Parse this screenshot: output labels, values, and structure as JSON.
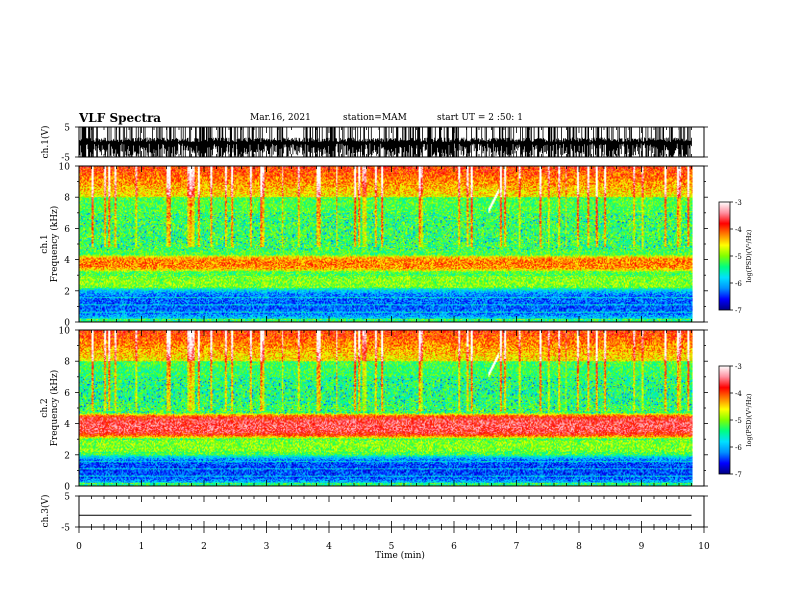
{
  "header": {
    "title": "VLF Spectra",
    "date": "Mar.16, 2021",
    "station": "station=MAM",
    "start": "start UT =  2 :50: 1"
  },
  "colors": {
    "colormap": [
      "#000080",
      "#0000ff",
      "#0090ff",
      "#00e0ff",
      "#00ff80",
      "#80ff00",
      "#ffff00",
      "#ff8000",
      "#ff0000",
      "#ff90a0",
      "#ffffff"
    ],
    "waveform": "#000000"
  },
  "chart_data": [
    {
      "type": "line",
      "name": "ch1-waveform",
      "ylabel": "ch.1(V)",
      "ylim": [
        -5,
        5
      ],
      "yticks": [
        "5",
        "-5"
      ],
      "xlim": [
        0,
        10
      ],
      "description_series": {
        "x": [
          0,
          9.8
        ],
        "y": [
          -5,
          5
        ]
      }
    },
    {
      "type": "heatmap",
      "name": "ch1-spectrogram",
      "ylabel_channel": "ch.1",
      "ylabel": "Frequency  (kHz)",
      "ylim": [
        0,
        10
      ],
      "yticks": [
        "0",
        "2",
        "4",
        "6",
        "8",
        "10"
      ],
      "xlim": [
        0,
        10
      ],
      "data_xmax": 9.8,
      "colorbar": {
        "label": "log(PSD)(V²/Hz)",
        "range": [
          -7,
          -3
        ],
        "ticks": [
          "-3",
          "-4",
          "-5",
          "-6",
          "-7"
        ]
      },
      "bands": [
        {
          "freq_khz": [
            3.2,
            4.3
          ],
          "level": -4.2
        },
        {
          "freq_khz": [
            0,
            2.2
          ],
          "level": -6.3
        },
        {
          "freq_khz": [
            5.0,
            8.0
          ],
          "level": -5.2
        }
      ],
      "feature": {
        "time_min": [
          6.55,
          6.7
        ],
        "freq_khz": [
          7.2,
          8.4
        ],
        "level": -3.0
      }
    },
    {
      "type": "heatmap",
      "name": "ch2-spectrogram",
      "ylabel_channel": "ch.2",
      "ylabel": "Frequency  (kHz)",
      "ylim": [
        0,
        10
      ],
      "yticks": [
        "0",
        "2",
        "4",
        "6",
        "8",
        "10"
      ],
      "xlim": [
        0,
        10
      ],
      "data_xmax": 9.8,
      "colorbar": {
        "label": "log(PSD)(V²/Hz)",
        "range": [
          -7,
          -3
        ],
        "ticks": [
          "-3",
          "-4",
          "-5",
          "-6",
          "-7"
        ]
      },
      "bands": [
        {
          "freq_khz": [
            3.0,
            4.7
          ],
          "level": -3.6
        },
        {
          "freq_khz": [
            0,
            2.0
          ],
          "level": -6.4
        },
        {
          "freq_khz": [
            5.0,
            8.0
          ],
          "level": -5.3
        }
      ],
      "feature": {
        "time_min": [
          6.55,
          6.7
        ],
        "freq_khz": [
          7.2,
          8.4
        ],
        "level": -3.0
      }
    },
    {
      "type": "line",
      "name": "ch3-waveform",
      "ylabel": "ch.3(V)",
      "ylim": [
        -5,
        5
      ],
      "yticks": [
        "5",
        "-5"
      ],
      "xlim": [
        0,
        10
      ],
      "x": [
        0,
        9.8
      ],
      "y": [
        -1.2,
        -1.2
      ]
    }
  ],
  "xaxis": {
    "label": "Time  (min)",
    "ticks": [
      "0",
      "1",
      "2",
      "3",
      "4",
      "5",
      "6",
      "7",
      "8",
      "9",
      "10"
    ]
  }
}
